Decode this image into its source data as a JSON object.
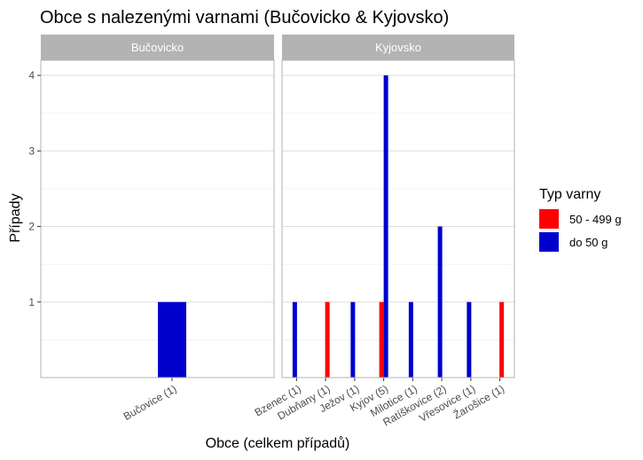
{
  "chart_data": {
    "type": "bar",
    "title": "Obce s nalezenými varnami (Bučovicko & Kyjovsko)",
    "xlabel": "Obce (celkem případů)",
    "ylabel": "Případy",
    "ylim": [
      0,
      4.2
    ],
    "y_ticks": [
      1,
      2,
      3,
      4
    ],
    "grid": true,
    "legend": {
      "title": "Typ varny",
      "position": "right",
      "items": [
        {
          "label": "50 - 499 g",
          "color": "#ff0000"
        },
        {
          "label": "do 50 g",
          "color": "#0000cc"
        }
      ]
    },
    "facets": [
      {
        "name": "Bučovicko",
        "categories": [
          "Bučovice (1)"
        ],
        "series": [
          {
            "name": "50 - 499 g",
            "color": "#ff0000",
            "values": [
              0
            ]
          },
          {
            "name": "do 50 g",
            "color": "#0000cc",
            "values": [
              1
            ]
          }
        ]
      },
      {
        "name": "Kyjovsko",
        "categories": [
          "Bzenec (1)",
          "Dubňany (1)",
          "Ježov (1)",
          "Kyjov (5)",
          "Milotice (1)",
          "Ratíškovice (2)",
          "Vřesovice (1)",
          "Žarošice (1)"
        ],
        "series": [
          {
            "name": "50 - 499 g",
            "color": "#ff0000",
            "values": [
              0,
              1,
              0,
              1,
              0,
              0,
              0,
              1
            ]
          },
          {
            "name": "do 50 g",
            "color": "#0000cc",
            "values": [
              1,
              0,
              1,
              4,
              1,
              2,
              1,
              0
            ]
          }
        ]
      }
    ]
  }
}
